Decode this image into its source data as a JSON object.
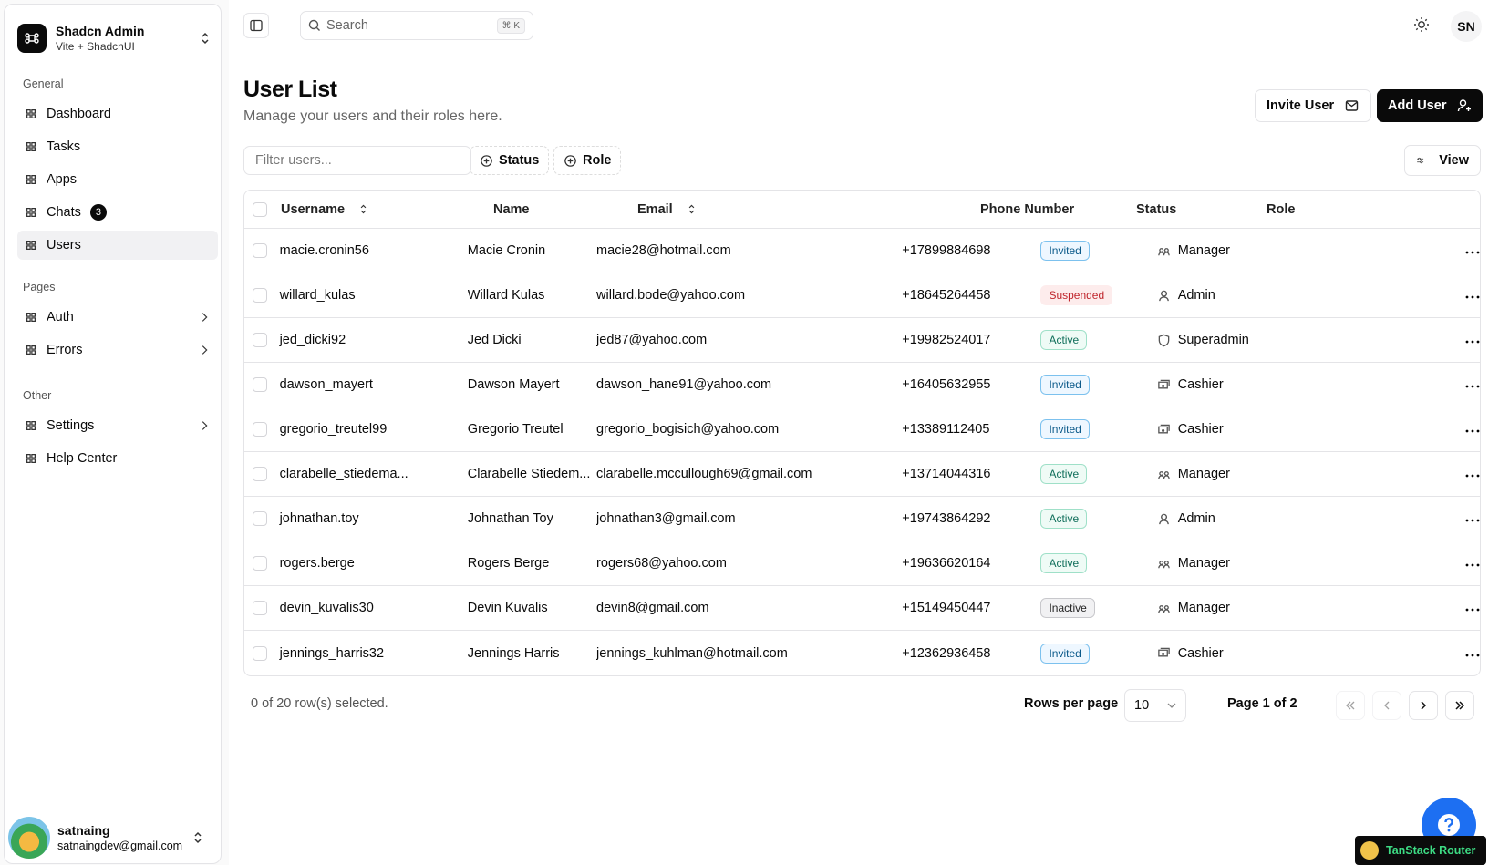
{
  "sidebar": {
    "team": {
      "name": "Shadcn Admin",
      "plan": "Vite + ShadcnUI"
    },
    "groups": [
      {
        "title": "General",
        "items": [
          {
            "label": "Dashboard"
          },
          {
            "label": "Tasks"
          },
          {
            "label": "Apps"
          },
          {
            "label": "Chats",
            "badge": 3
          },
          {
            "label": "Users"
          }
        ]
      },
      {
        "title": "Pages",
        "items": [
          {
            "label": "Auth"
          },
          {
            "label": "Errors"
          }
        ]
      },
      {
        "title": "Other",
        "items": [
          {
            "label": "Settings"
          },
          {
            "label": "Help Center"
          }
        ]
      }
    ],
    "user": {
      "name": "satnaing",
      "email": "satnaingdev@gmail.com"
    }
  },
  "header": {
    "search": "Search",
    "shortcut": "⌘ K",
    "avatar": "SN"
  },
  "page": {
    "title": "User List",
    "subtitle": "Manage your users and their roles here.",
    "buttons": [
      "Invite User",
      "Add User"
    ]
  },
  "toolbar": {
    "filter_placeholder": "Filter users...",
    "filters": [
      "Status",
      "Role"
    ],
    "view": "View"
  },
  "table": {
    "columns": [
      "Username",
      "Name",
      "Email",
      "Phone Number",
      "Status",
      "Role"
    ],
    "rows": [
      [
        "macie.cronin56",
        "Macie Cronin",
        "macie28@hotmail.com",
        "+17899884698",
        "Invited",
        "Manager"
      ],
      [
        "willard_kulas",
        "Willard Kulas",
        "willard.bode@yahoo.com",
        "+18645264458",
        "Suspended",
        "Admin"
      ],
      [
        "jed_dicki92",
        "Jed Dicki",
        "jed87@yahoo.com",
        "+19982524017",
        "Active",
        "Superadmin"
      ],
      [
        "dawson_mayert",
        "Dawson Mayert",
        "dawson_hane91@yahoo.com",
        "+16405632955",
        "Invited",
        "Cashier"
      ],
      [
        "gregorio_treutel99",
        "Gregorio Treutel",
        "gregorio_bogisich@yahoo.com",
        "+13389112405",
        "Invited",
        "Cashier"
      ],
      [
        "clarabelle_stiedema...",
        "Clarabelle Stiedem...",
        "clarabelle.mccullough69@gmail.com",
        "+13714044316",
        "Active",
        "Manager"
      ],
      [
        "johnathan.toy",
        "Johnathan Toy",
        "johnathan3@gmail.com",
        "+19743864292",
        "Active",
        "Admin"
      ],
      [
        "rogers.berge",
        "Rogers Berge",
        "rogers68@yahoo.com",
        "+19636620164",
        "Active",
        "Manager"
      ],
      [
        "devin_kuvalis30",
        "Devin Kuvalis",
        "devin8@gmail.com",
        "+15149450447",
        "Inactive",
        "Manager"
      ],
      [
        "jennings_harris32",
        "Jennings Harris",
        "jennings_kuhlman@hotmail.com",
        "+12362936458",
        "Invited",
        "Cashier"
      ]
    ]
  },
  "footer": {
    "selected": "0 of 20 row(s) selected.",
    "rows_per_page_label": "Rows per page",
    "rows_per_page": 10,
    "page": "Page 1 of 2"
  },
  "devtools": "TanStack Router"
}
